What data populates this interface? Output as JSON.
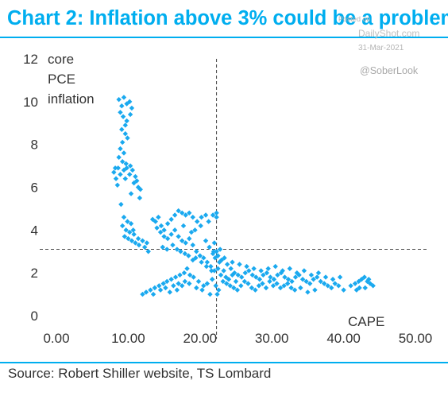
{
  "title": "Chart 2: Inflation above 3% could be a problem",
  "source": "Source: Robert Shiller website, TS Lombard",
  "watermark": {
    "posted": "Posted on",
    "brand": "DailyShot.com",
    "date": "31-Mar-2021",
    "handle": "@SoberLook"
  },
  "colors": {
    "accent": "#00aeef",
    "points": "#1aa9ef",
    "text": "#333333"
  },
  "chart_data": {
    "type": "scatter",
    "title": "Chart 2: Inflation above 3% could be a problem",
    "ylabel_lines": [
      "core",
      "PCE",
      "inflation"
    ],
    "xlabel": "CAPE",
    "xlim": [
      0,
      50
    ],
    "ylim": [
      0,
      12
    ],
    "x_ticks": [
      "0.00",
      "10.00",
      "20.00",
      "30.00",
      "40.00",
      "50.00"
    ],
    "y_ticks": [
      "0",
      "2",
      "4",
      "6",
      "8",
      "10",
      "12"
    ],
    "reference_lines": {
      "vertical_x": 22.3,
      "horizontal_y": 3.1
    },
    "grid": false,
    "series": [
      {
        "points": [
          [
            8.7,
            10.1
          ],
          [
            9.1,
            9.8
          ],
          [
            9.4,
            10.2
          ],
          [
            9.8,
            9.9
          ],
          [
            10.2,
            10.0
          ],
          [
            10.5,
            9.7
          ],
          [
            8.9,
            9.5
          ],
          [
            9.3,
            9.3
          ],
          [
            9.8,
            9.1
          ],
          [
            10.3,
            9.4
          ],
          [
            9.6,
            8.9
          ],
          [
            9.1,
            8.7
          ],
          [
            9.6,
            8.5
          ],
          [
            9.9,
            8.3
          ],
          [
            9.2,
            8.1
          ],
          [
            8.9,
            7.8
          ],
          [
            9.4,
            7.6
          ],
          [
            8.7,
            7.4
          ],
          [
            9.2,
            7.2
          ],
          [
            9.7,
            7.1
          ],
          [
            8.6,
            6.9
          ],
          [
            8.9,
            6.6
          ],
          [
            9.4,
            6.8
          ],
          [
            8.0,
            6.7
          ],
          [
            8.3,
            6.4
          ],
          [
            8.2,
            6.9
          ],
          [
            8.5,
            6.1
          ],
          [
            9.6,
            6.4
          ],
          [
            10.2,
            6.6
          ],
          [
            10.6,
            6.8
          ],
          [
            11.0,
            6.5
          ],
          [
            9.8,
            6.9
          ],
          [
            10.3,
            7.0
          ],
          [
            10.8,
            6.2
          ],
          [
            11.4,
            6.0
          ],
          [
            11.7,
            5.9
          ],
          [
            11.2,
            6.3
          ],
          [
            10.4,
            5.7
          ],
          [
            11.6,
            5.5
          ],
          [
            9.0,
            5.2
          ],
          [
            9.4,
            4.6
          ],
          [
            9.9,
            4.4
          ],
          [
            10.4,
            4.3
          ],
          [
            10.7,
            4.0
          ],
          [
            9.2,
            4.2
          ],
          [
            9.7,
            4.0
          ],
          [
            10.2,
            3.9
          ],
          [
            10.8,
            3.8
          ],
          [
            11.4,
            3.6
          ],
          [
            12.0,
            3.5
          ],
          [
            12.6,
            3.4
          ],
          [
            9.5,
            3.7
          ],
          [
            10.0,
            3.6
          ],
          [
            10.5,
            3.5
          ],
          [
            11.0,
            3.4
          ],
          [
            11.5,
            3.3
          ],
          [
            12.3,
            3.2
          ],
          [
            12.8,
            3.0
          ],
          [
            13.4,
            4.5
          ],
          [
            13.8,
            4.4
          ],
          [
            14.2,
            4.6
          ],
          [
            14.6,
            4.2
          ],
          [
            15.0,
            4.0
          ],
          [
            15.5,
            4.3
          ],
          [
            16.0,
            4.5
          ],
          [
            16.5,
            4.7
          ],
          [
            17.0,
            4.9
          ],
          [
            17.5,
            4.8
          ],
          [
            18.0,
            4.7
          ],
          [
            18.5,
            4.8
          ],
          [
            19.0,
            4.6
          ],
          [
            14.0,
            4.1
          ],
          [
            14.5,
            3.9
          ],
          [
            15.0,
            3.7
          ],
          [
            15.5,
            3.6
          ],
          [
            16.0,
            3.8
          ],
          [
            16.5,
            4.0
          ],
          [
            17.0,
            3.7
          ],
          [
            17.5,
            3.5
          ],
          [
            18.0,
            3.4
          ],
          [
            18.5,
            3.6
          ],
          [
            19.0,
            3.3
          ],
          [
            19.5,
            3.0
          ],
          [
            20.0,
            2.8
          ],
          [
            20.5,
            2.7
          ],
          [
            21.0,
            2.5
          ],
          [
            21.5,
            2.3
          ],
          [
            22.0,
            2.1
          ],
          [
            22.3,
            4.6
          ],
          [
            22.3,
            4.8
          ],
          [
            21.8,
            4.7
          ],
          [
            21.2,
            4.4
          ],
          [
            20.8,
            4.7
          ],
          [
            20.2,
            4.6
          ],
          [
            19.6,
            4.4
          ],
          [
            20.1,
            4.2
          ],
          [
            19.3,
            4.0
          ],
          [
            18.8,
            3.9
          ],
          [
            17.7,
            4.2
          ],
          [
            14.8,
            3.2
          ],
          [
            15.4,
            3.1
          ],
          [
            16.2,
            3.3
          ],
          [
            16.8,
            3.1
          ],
          [
            17.3,
            3.0
          ],
          [
            17.9,
            2.9
          ],
          [
            18.4,
            2.8
          ],
          [
            19.0,
            2.6
          ],
          [
            19.4,
            2.7
          ],
          [
            20.2,
            2.5
          ],
          [
            20.9,
            2.3
          ],
          [
            21.6,
            2.1
          ],
          [
            18.2,
            2.2
          ],
          [
            17.8,
            2.0
          ],
          [
            17.2,
            1.9
          ],
          [
            16.6,
            1.8
          ],
          [
            16.0,
            1.7
          ],
          [
            15.4,
            1.6
          ],
          [
            14.9,
            1.5
          ],
          [
            14.3,
            1.4
          ],
          [
            13.7,
            1.3
          ],
          [
            13.1,
            1.2
          ],
          [
            12.5,
            1.1
          ],
          [
            12.0,
            1.0
          ],
          [
            15.8,
            1.1
          ],
          [
            16.8,
            1.2
          ],
          [
            17.5,
            1.4
          ],
          [
            18.5,
            1.5
          ],
          [
            19.5,
            1.3
          ],
          [
            20.3,
            1.2
          ],
          [
            21.0,
            1.5
          ],
          [
            21.7,
            1.7
          ],
          [
            22.2,
            1.4
          ],
          [
            22.6,
            1.2
          ],
          [
            22.4,
            1.0
          ],
          [
            21.4,
            1.0
          ],
          [
            20.5,
            1.4
          ],
          [
            19.8,
            1.6
          ],
          [
            19.1,
            1.8
          ],
          [
            18.6,
            1.9
          ],
          [
            17.9,
            1.6
          ],
          [
            17.0,
            1.5
          ],
          [
            16.3,
            1.4
          ],
          [
            15.2,
            1.3
          ],
          [
            14.5,
            1.2
          ],
          [
            13.5,
            1.0
          ],
          [
            20.8,
            3.5
          ],
          [
            21.3,
            3.2
          ],
          [
            21.9,
            3.0
          ],
          [
            22.5,
            2.8
          ],
          [
            23.0,
            2.6
          ],
          [
            22.8,
            3.1
          ],
          [
            23.4,
            2.7
          ],
          [
            23.8,
            2.4
          ],
          [
            24.3,
            2.2
          ],
          [
            24.8,
            2.0
          ],
          [
            25.3,
            1.9
          ],
          [
            25.8,
            1.8
          ],
          [
            26.3,
            2.0
          ],
          [
            26.8,
            2.1
          ],
          [
            27.3,
            1.9
          ],
          [
            27.8,
            1.8
          ],
          [
            28.3,
            1.7
          ],
          [
            28.8,
            1.9
          ],
          [
            29.3,
            2.0
          ],
          [
            29.8,
            1.8
          ],
          [
            30.3,
            1.7
          ],
          [
            30.8,
            1.9
          ],
          [
            31.3,
            2.0
          ],
          [
            31.8,
            1.8
          ],
          [
            32.3,
            1.7
          ],
          [
            32.8,
            1.6
          ],
          [
            33.3,
            1.8
          ],
          [
            33.8,
            1.9
          ],
          [
            34.3,
            1.7
          ],
          [
            34.8,
            1.6
          ],
          [
            35.3,
            1.5
          ],
          [
            35.8,
            1.7
          ],
          [
            36.3,
            1.8
          ],
          [
            36.8,
            1.6
          ],
          [
            37.3,
            1.5
          ],
          [
            37.8,
            1.4
          ],
          [
            38.3,
            1.3
          ],
          [
            38.8,
            1.5
          ],
          [
            39.3,
            1.4
          ],
          [
            40.0,
            1.2
          ],
          [
            23.2,
            1.6
          ],
          [
            23.7,
            1.5
          ],
          [
            24.2,
            1.4
          ],
          [
            24.7,
            1.3
          ],
          [
            25.2,
            1.2
          ],
          [
            25.7,
            1.4
          ],
          [
            26.2,
            1.6
          ],
          [
            26.7,
            1.5
          ],
          [
            27.2,
            1.3
          ],
          [
            27.7,
            1.2
          ],
          [
            28.2,
            1.4
          ],
          [
            28.7,
            1.5
          ],
          [
            29.2,
            1.3
          ],
          [
            29.7,
            1.6
          ],
          [
            30.2,
            1.4
          ],
          [
            30.7,
            1.5
          ],
          [
            31.2,
            1.3
          ],
          [
            31.7,
            1.4
          ],
          [
            32.2,
            1.5
          ],
          [
            32.7,
            1.3
          ],
          [
            33.2,
            1.2
          ],
          [
            34.0,
            1.3
          ],
          [
            35.0,
            1.1
          ],
          [
            36.0,
            1.2
          ],
          [
            24.5,
            2.5
          ],
          [
            25.5,
            2.4
          ],
          [
            26.5,
            2.3
          ],
          [
            27.5,
            2.2
          ],
          [
            28.5,
            2.1
          ],
          [
            29.5,
            2.2
          ],
          [
            30.5,
            2.3
          ],
          [
            31.5,
            2.1
          ],
          [
            32.5,
            2.2
          ],
          [
            33.5,
            2.0
          ],
          [
            34.5,
            2.1
          ],
          [
            35.5,
            1.9
          ],
          [
            36.5,
            2.0
          ],
          [
            37.5,
            1.8
          ],
          [
            38.5,
            1.7
          ],
          [
            39.5,
            1.8
          ],
          [
            41.0,
            1.4
          ],
          [
            41.6,
            1.5
          ],
          [
            42.1,
            1.6
          ],
          [
            42.5,
            1.7
          ],
          [
            42.9,
            1.8
          ],
          [
            43.3,
            1.6
          ],
          [
            43.7,
            1.5
          ],
          [
            44.1,
            1.4
          ],
          [
            42.2,
            1.3
          ],
          [
            41.8,
            1.2
          ],
          [
            43.0,
            1.3
          ],
          [
            43.5,
            1.7
          ],
          [
            22.0,
            3.4
          ],
          [
            22.3,
            3.0
          ],
          [
            22.7,
            2.5
          ],
          [
            22.1,
            2.7
          ],
          [
            21.8,
            2.9
          ],
          [
            22.5,
            2.2
          ],
          [
            22.9,
            1.9
          ],
          [
            23.3,
            2.1
          ],
          [
            23.6,
            1.8
          ],
          [
            24.0,
            1.7
          ],
          [
            24.5,
            1.9
          ],
          [
            25.0,
            1.6
          ]
        ]
      }
    ]
  }
}
